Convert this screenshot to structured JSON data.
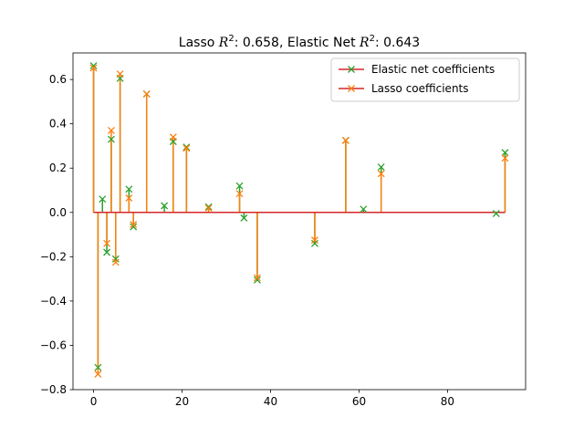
{
  "chart_data": {
    "type": "scatter",
    "title": {
      "lasso_prefix": "Lasso ",
      "lasso_r2": "0.658",
      "enet_prefix": ", Elastic Net ",
      "enet_r2": "0.643",
      "r2_symbol": "R",
      "r2_sup": "2",
      "colon": ": "
    },
    "xlim": [
      -4.65,
      97.65
    ],
    "ylim": [
      -0.8,
      0.72
    ],
    "xticks": [
      0,
      20,
      40,
      60,
      80
    ],
    "yticks": [
      -0.8,
      -0.6,
      -0.4,
      -0.2,
      0.0,
      0.2,
      0.4,
      0.6
    ],
    "ytick_labels": [
      "−0.8",
      "−0.6",
      "−0.4",
      "−0.2",
      "0.0",
      "0.2",
      "0.4",
      "0.6"
    ],
    "baseline": {
      "color": "#d62728",
      "y": 0,
      "x_range": [
        0,
        93
      ]
    },
    "legend": {
      "position": "top-right"
    },
    "series": [
      {
        "name": "Elastic net coefficients",
        "color": "#2ca02c",
        "marker": "x",
        "stem_color": "#2ca02c",
        "x": [
          0,
          1,
          2,
          3,
          4,
          5,
          6,
          8,
          9,
          12,
          16,
          18,
          21,
          26,
          33,
          34,
          37,
          50,
          57,
          61,
          65,
          91,
          93
        ],
        "values": [
          0.662,
          -0.7,
          0.06,
          -0.18,
          0.33,
          -0.21,
          0.605,
          0.105,
          -0.065,
          0.535,
          0.03,
          0.32,
          0.295,
          0.025,
          0.12,
          -0.025,
          -0.305,
          -0.14,
          0.325,
          0.015,
          0.205,
          -0.005,
          0.27
        ]
      },
      {
        "name": "Lasso coefficients",
        "color": "#ff7f0e",
        "marker": "x",
        "stem_color": "#ff7f0e",
        "x": [
          0,
          1,
          3,
          4,
          5,
          6,
          8,
          9,
          12,
          18,
          21,
          26,
          33,
          37,
          50,
          57,
          65,
          93
        ],
        "values": [
          0.652,
          -0.73,
          -0.14,
          0.37,
          -0.225,
          0.625,
          0.065,
          -0.055,
          0.535,
          0.34,
          0.29,
          0.02,
          0.085,
          -0.295,
          -0.125,
          0.325,
          0.175,
          0.245
        ]
      }
    ]
  }
}
